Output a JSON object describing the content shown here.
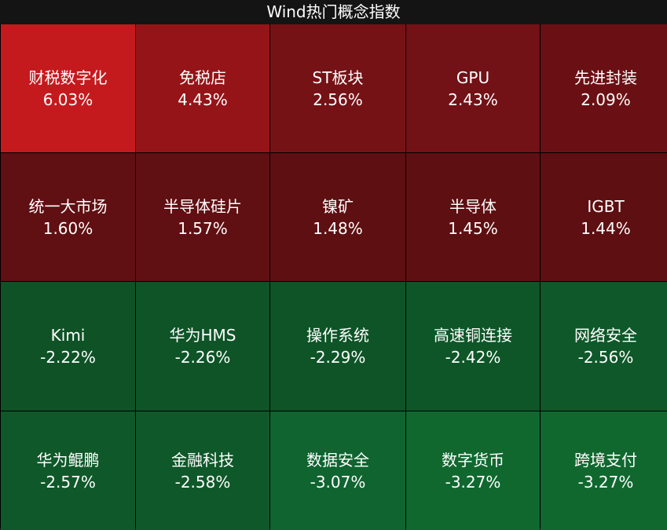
{
  "title": "Wind热门概念指数",
  "chart_data": {
    "type": "heatmap",
    "title": "Wind热门概念指数",
    "unit": "%",
    "cells": [
      {
        "name": "财税数字化",
        "value": 6.03,
        "label": "6.03%",
        "color": "#c41a1e"
      },
      {
        "name": "免税店",
        "value": 4.43,
        "label": "4.43%",
        "color": "#951418"
      },
      {
        "name": "ST板块",
        "value": 2.56,
        "label": "2.56%",
        "color": "#751216"
      },
      {
        "name": "GPU",
        "value": 2.43,
        "label": "2.43%",
        "color": "#721116"
      },
      {
        "name": "先进封装",
        "value": 2.09,
        "label": "2.09%",
        "color": "#6a1014"
      },
      {
        "name": "统一大市场",
        "value": 1.6,
        "label": "1.60%",
        "color": "#600f12"
      },
      {
        "name": "半导体硅片",
        "value": 1.57,
        "label": "1.57%",
        "color": "#600f12"
      },
      {
        "name": "镍矿",
        "value": 1.48,
        "label": "1.48%",
        "color": "#5e0f12"
      },
      {
        "name": "半导体",
        "value": 1.45,
        "label": "1.45%",
        "color": "#5e0f12"
      },
      {
        "name": "IGBT",
        "value": 1.44,
        "label": "1.44%",
        "color": "#5e0f12"
      },
      {
        "name": "Kimi",
        "value": -2.22,
        "label": "-2.22%",
        "color": "#0e5226"
      },
      {
        "name": "华为HMS",
        "value": -2.26,
        "label": "-2.26%",
        "color": "#0e5427"
      },
      {
        "name": "操作系统",
        "value": -2.29,
        "label": "-2.29%",
        "color": "#0e5427"
      },
      {
        "name": "高速铜连接",
        "value": -2.42,
        "label": "-2.42%",
        "color": "#0e5628"
      },
      {
        "name": "网络安全",
        "value": -2.56,
        "label": "-2.56%",
        "color": "#0f5829"
      },
      {
        "name": "华为鲲鹏",
        "value": -2.57,
        "label": "-2.57%",
        "color": "#0f5829"
      },
      {
        "name": "金融科技",
        "value": -2.58,
        "label": "-2.58%",
        "color": "#0f5829"
      },
      {
        "name": "数据安全",
        "value": -3.07,
        "label": "-3.07%",
        "color": "#0f6430"
      },
      {
        "name": "数字货币",
        "value": -3.27,
        "label": "-3.27%",
        "color": "#10682f"
      },
      {
        "name": "跨境支付",
        "value": -3.27,
        "label": "-3.27%",
        "color": "#10682f"
      }
    ]
  }
}
